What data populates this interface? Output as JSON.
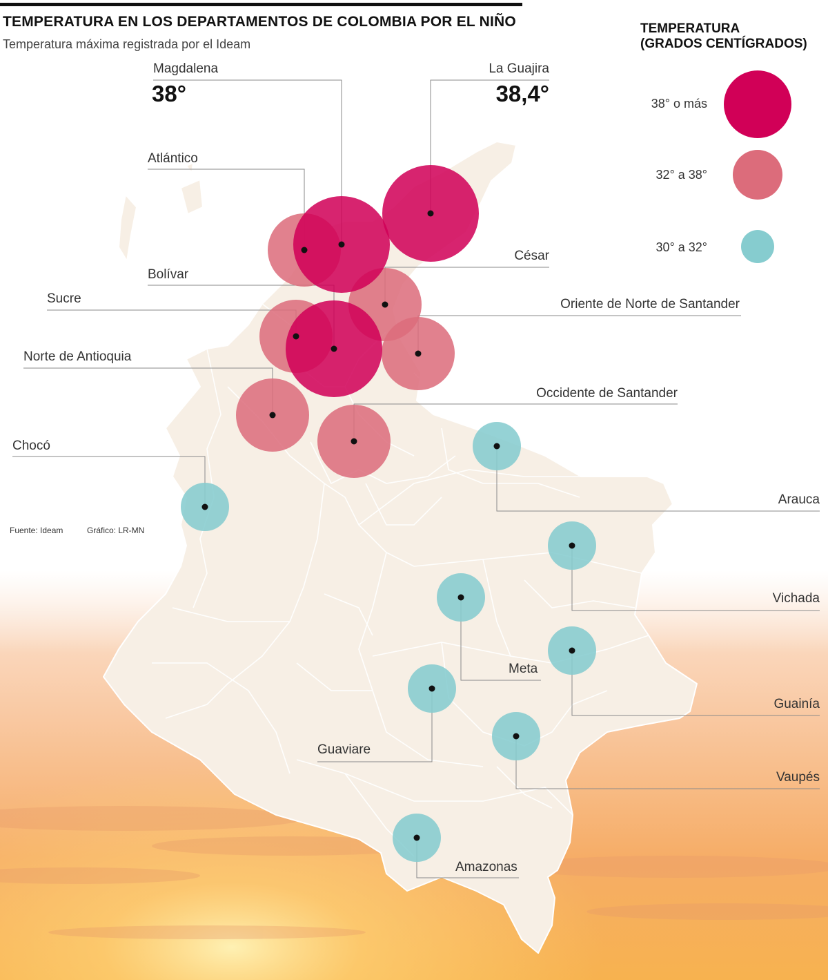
{
  "header": {
    "title": "TEMPERATURA EN LOS DEPARTAMENTOS DE COLOMBIA POR EL NIÑO",
    "subtitle": "Temperatura máxima registrada por el Ideam"
  },
  "legend": {
    "title_line1": "TEMPERATURA",
    "title_line2": "(GRADOS CENTÍGRADOS)",
    "items": [
      {
        "label": "38° o más",
        "color": "#d10057"
      },
      {
        "label": "32° a 38°",
        "color": "#dc6c7b"
      },
      {
        "label": "30° a 32°",
        "color": "#86cccf"
      }
    ]
  },
  "credits": {
    "source": "Fuente: Ideam",
    "graphic": "Gráfico: LR-MN"
  },
  "highlights": {
    "magdalena_value": "38°",
    "guajira_value": "38,4°"
  },
  "departments": [
    {
      "key": "guajira",
      "name": "La Guajira",
      "category": 0
    },
    {
      "key": "magdalena",
      "name": "Magdalena",
      "category": 0
    },
    {
      "key": "atlantico",
      "name": "Atlántico",
      "category": 1
    },
    {
      "key": "bolivar",
      "name": "Bolívar",
      "category": 0
    },
    {
      "key": "cesar",
      "name": "César",
      "category": 1
    },
    {
      "key": "oriente_norte_santander",
      "name": "Oriente de Norte de Santander",
      "category": 1
    },
    {
      "key": "sucre",
      "name": "Sucre",
      "category": 1
    },
    {
      "key": "norte_antioquia",
      "name": "Norte de Antioquia",
      "category": 1
    },
    {
      "key": "occidente_santander",
      "name": "Occidente de Santander",
      "category": 1
    },
    {
      "key": "choco",
      "name": "Chocó",
      "category": 2
    },
    {
      "key": "arauca",
      "name": "Arauca",
      "category": 2
    },
    {
      "key": "vichada",
      "name": "Vichada",
      "category": 2
    },
    {
      "key": "meta",
      "name": "Meta",
      "category": 2
    },
    {
      "key": "guainia",
      "name": "Guainía",
      "category": 2
    },
    {
      "key": "guaviare",
      "name": "Guaviare",
      "category": 2
    },
    {
      "key": "vaupes",
      "name": "Vaupés",
      "category": 2
    },
    {
      "key": "amazonas",
      "name": "Amazonas",
      "category": 2
    }
  ]
}
